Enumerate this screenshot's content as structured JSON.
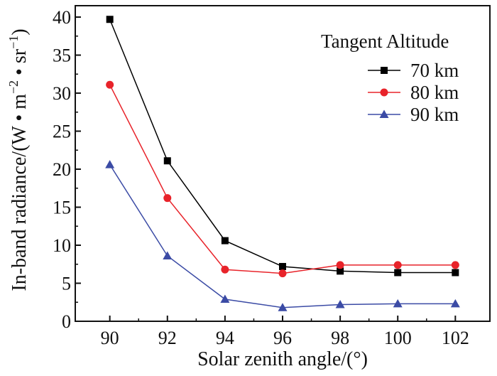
{
  "chart_data": {
    "type": "line",
    "x": [
      90,
      92,
      94,
      96,
      98,
      100,
      102
    ],
    "xlim": [
      88.8,
      103.2
    ],
    "ylim": [
      0,
      41.5
    ],
    "xticks": [
      90,
      92,
      94,
      96,
      98,
      100,
      102
    ],
    "yticks": [
      0,
      5,
      10,
      15,
      20,
      25,
      30,
      35,
      40
    ],
    "xlabel": "Solar zenith angle/(°)",
    "ylabel": {
      "base": "In-band radiance/(W • m",
      "sup1": "−2",
      "mid": " • sr",
      "sup2": "−1",
      "end": ")"
    },
    "legend": {
      "title": "Tangent Altitude",
      "position": "top-right"
    },
    "grid": false,
    "series": [
      {
        "name": "70 km",
        "color": "#000000",
        "marker": "square",
        "values": [
          39.7,
          21.1,
          10.6,
          7.2,
          6.6,
          6.4,
          6.4
        ]
      },
      {
        "name": "80 km",
        "color": "#e8232a",
        "marker": "circle",
        "values": [
          31.1,
          16.2,
          6.8,
          6.3,
          7.4,
          7.4,
          7.4
        ]
      },
      {
        "name": "90 km",
        "color": "#3b4ba5",
        "marker": "triangle",
        "values": [
          20.6,
          8.6,
          2.9,
          1.8,
          2.2,
          2.3,
          2.3
        ]
      }
    ]
  }
}
